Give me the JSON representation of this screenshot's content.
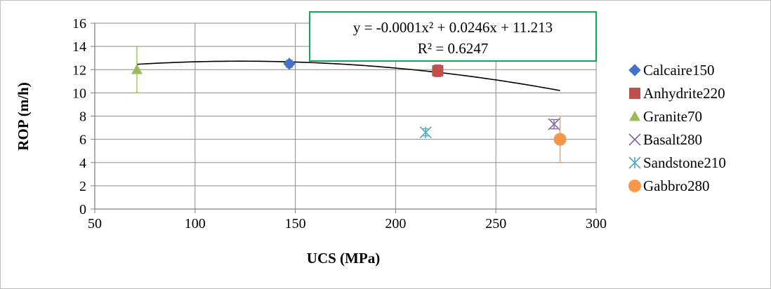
{
  "chart_data": {
    "type": "scatter",
    "xlabel": "UCS (MPa)",
    "ylabel": "ROP (m/h)",
    "xlim": [
      50,
      300
    ],
    "ylim": [
      0,
      16
    ],
    "x_ticks": [
      50,
      100,
      150,
      200,
      250,
      300
    ],
    "y_ticks": [
      0,
      2,
      4,
      6,
      8,
      10,
      12,
      14,
      16
    ],
    "grid": "horizontal and vertical major gridlines",
    "legend_position": "right",
    "series": [
      {
        "name": "Calcaire150",
        "marker": "diamond",
        "color": "#4472c4",
        "points": [
          {
            "x": 147,
            "y": 12.5
          }
        ],
        "error_y": 0.3
      },
      {
        "name": "Anhydrite220",
        "marker": "square",
        "color": "#c0504d",
        "points": [
          {
            "x": 221,
            "y": 11.9
          }
        ],
        "error_y": 0.5
      },
      {
        "name": "Granite70",
        "marker": "triangle",
        "color": "#9bbb59",
        "points": [
          {
            "x": 71,
            "y": 12
          }
        ],
        "error_y": 2
      },
      {
        "name": "Basalt280",
        "marker": "x",
        "color": "#8064a2",
        "points": [
          {
            "x": 279,
            "y": 7.3
          }
        ],
        "error_y": 0.4
      },
      {
        "name": "Sandstone210",
        "marker": "star",
        "color": "#4bacc6",
        "points": [
          {
            "x": 215,
            "y": 6.6
          }
        ],
        "error_y": 0.3
      },
      {
        "name": "Gabbro280",
        "marker": "circle",
        "color": "#f79646",
        "points": [
          {
            "x": 282,
            "y": 6
          }
        ],
        "error_y": 2
      }
    ],
    "trendline": {
      "type": "polynomial",
      "order": 2,
      "coefficients": [
        -0.0001,
        0.0246,
        11.213
      ],
      "x_range": [
        71,
        282
      ],
      "equation_label": "y = -0.0001x² + 0.0246x + 11.213",
      "r2_label": "R² = 0.6247",
      "label_border_color": "#00b050"
    }
  }
}
